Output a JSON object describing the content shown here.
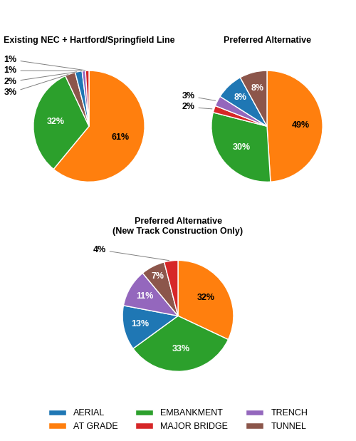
{
  "chart_data": [
    {
      "type": "pie",
      "title": "Existing NEC + Hartford/Springfield Line",
      "categories": [
        "AT GRADE",
        "EMBANKMENT",
        "TUNNEL",
        "AERIAL",
        "TRENCH",
        "MAJOR BRIDGE"
      ],
      "values": [
        61,
        32,
        3,
        2,
        1,
        1
      ],
      "value_labels": [
        "61%",
        "32%",
        "3%",
        "2%",
        "1%",
        "1%"
      ],
      "colors": [
        "#ff7f0e",
        "#2ca02c",
        "#8c564b",
        "#1f77b4",
        "#9467bd",
        "#d62728"
      ],
      "legend": "lower center"
    },
    {
      "type": "pie",
      "title": "Preferred Alternative",
      "categories": [
        "AT GRADE",
        "EMBANKMENT",
        "MAJOR BRIDGE",
        "TRENCH",
        "AERIAL",
        "TUNNEL"
      ],
      "values": [
        49,
        30,
        2,
        3,
        8,
        8
      ],
      "value_labels": [
        "49%",
        "30%",
        "2%",
        "3%",
        "8%",
        "8%"
      ],
      "colors": [
        "#ff7f0e",
        "#2ca02c",
        "#d62728",
        "#9467bd",
        "#1f77b4",
        "#8c564b"
      ],
      "legend": "lower center"
    },
    {
      "type": "pie",
      "title": "Preferred Alternative\n(New Track Construction Only)",
      "categories": [
        "AT GRADE",
        "EMBANKMENT",
        "AERIAL",
        "TRENCH",
        "TUNNEL",
        "MAJOR BRIDGE"
      ],
      "values": [
        32,
        33,
        13,
        11,
        7,
        4
      ],
      "value_labels": [
        "32%",
        "33%",
        "13%",
        "11%",
        "7%",
        "4%"
      ],
      "colors": [
        "#ff7f0e",
        "#2ca02c",
        "#1f77b4",
        "#9467bd",
        "#8c564b",
        "#d62728"
      ],
      "legend": "lower center"
    }
  ]
}
